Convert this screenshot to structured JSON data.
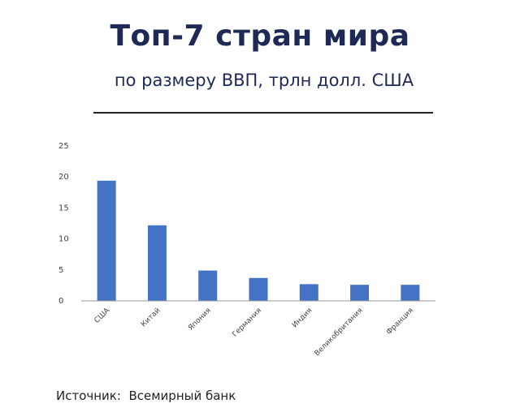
{
  "title": "Топ-7 стран мира",
  "subtitle": "по размеру ВВП, трлн долл. США",
  "source": {
    "label": "Источник:",
    "value": "Всемирный банк"
  },
  "chart_data": {
    "type": "bar",
    "categories": [
      "США",
      "Китай",
      "Япония",
      "Германия",
      "Индия",
      "Великобритания",
      "Франция"
    ],
    "values": [
      19.4,
      12.2,
      4.9,
      3.7,
      2.7,
      2.6,
      2.6
    ],
    "yticks": [
      0,
      5,
      10,
      15,
      20,
      25
    ],
    "ylim": [
      0,
      25
    ],
    "grid": false,
    "legend": "none",
    "bar_color": "#4472c4"
  }
}
